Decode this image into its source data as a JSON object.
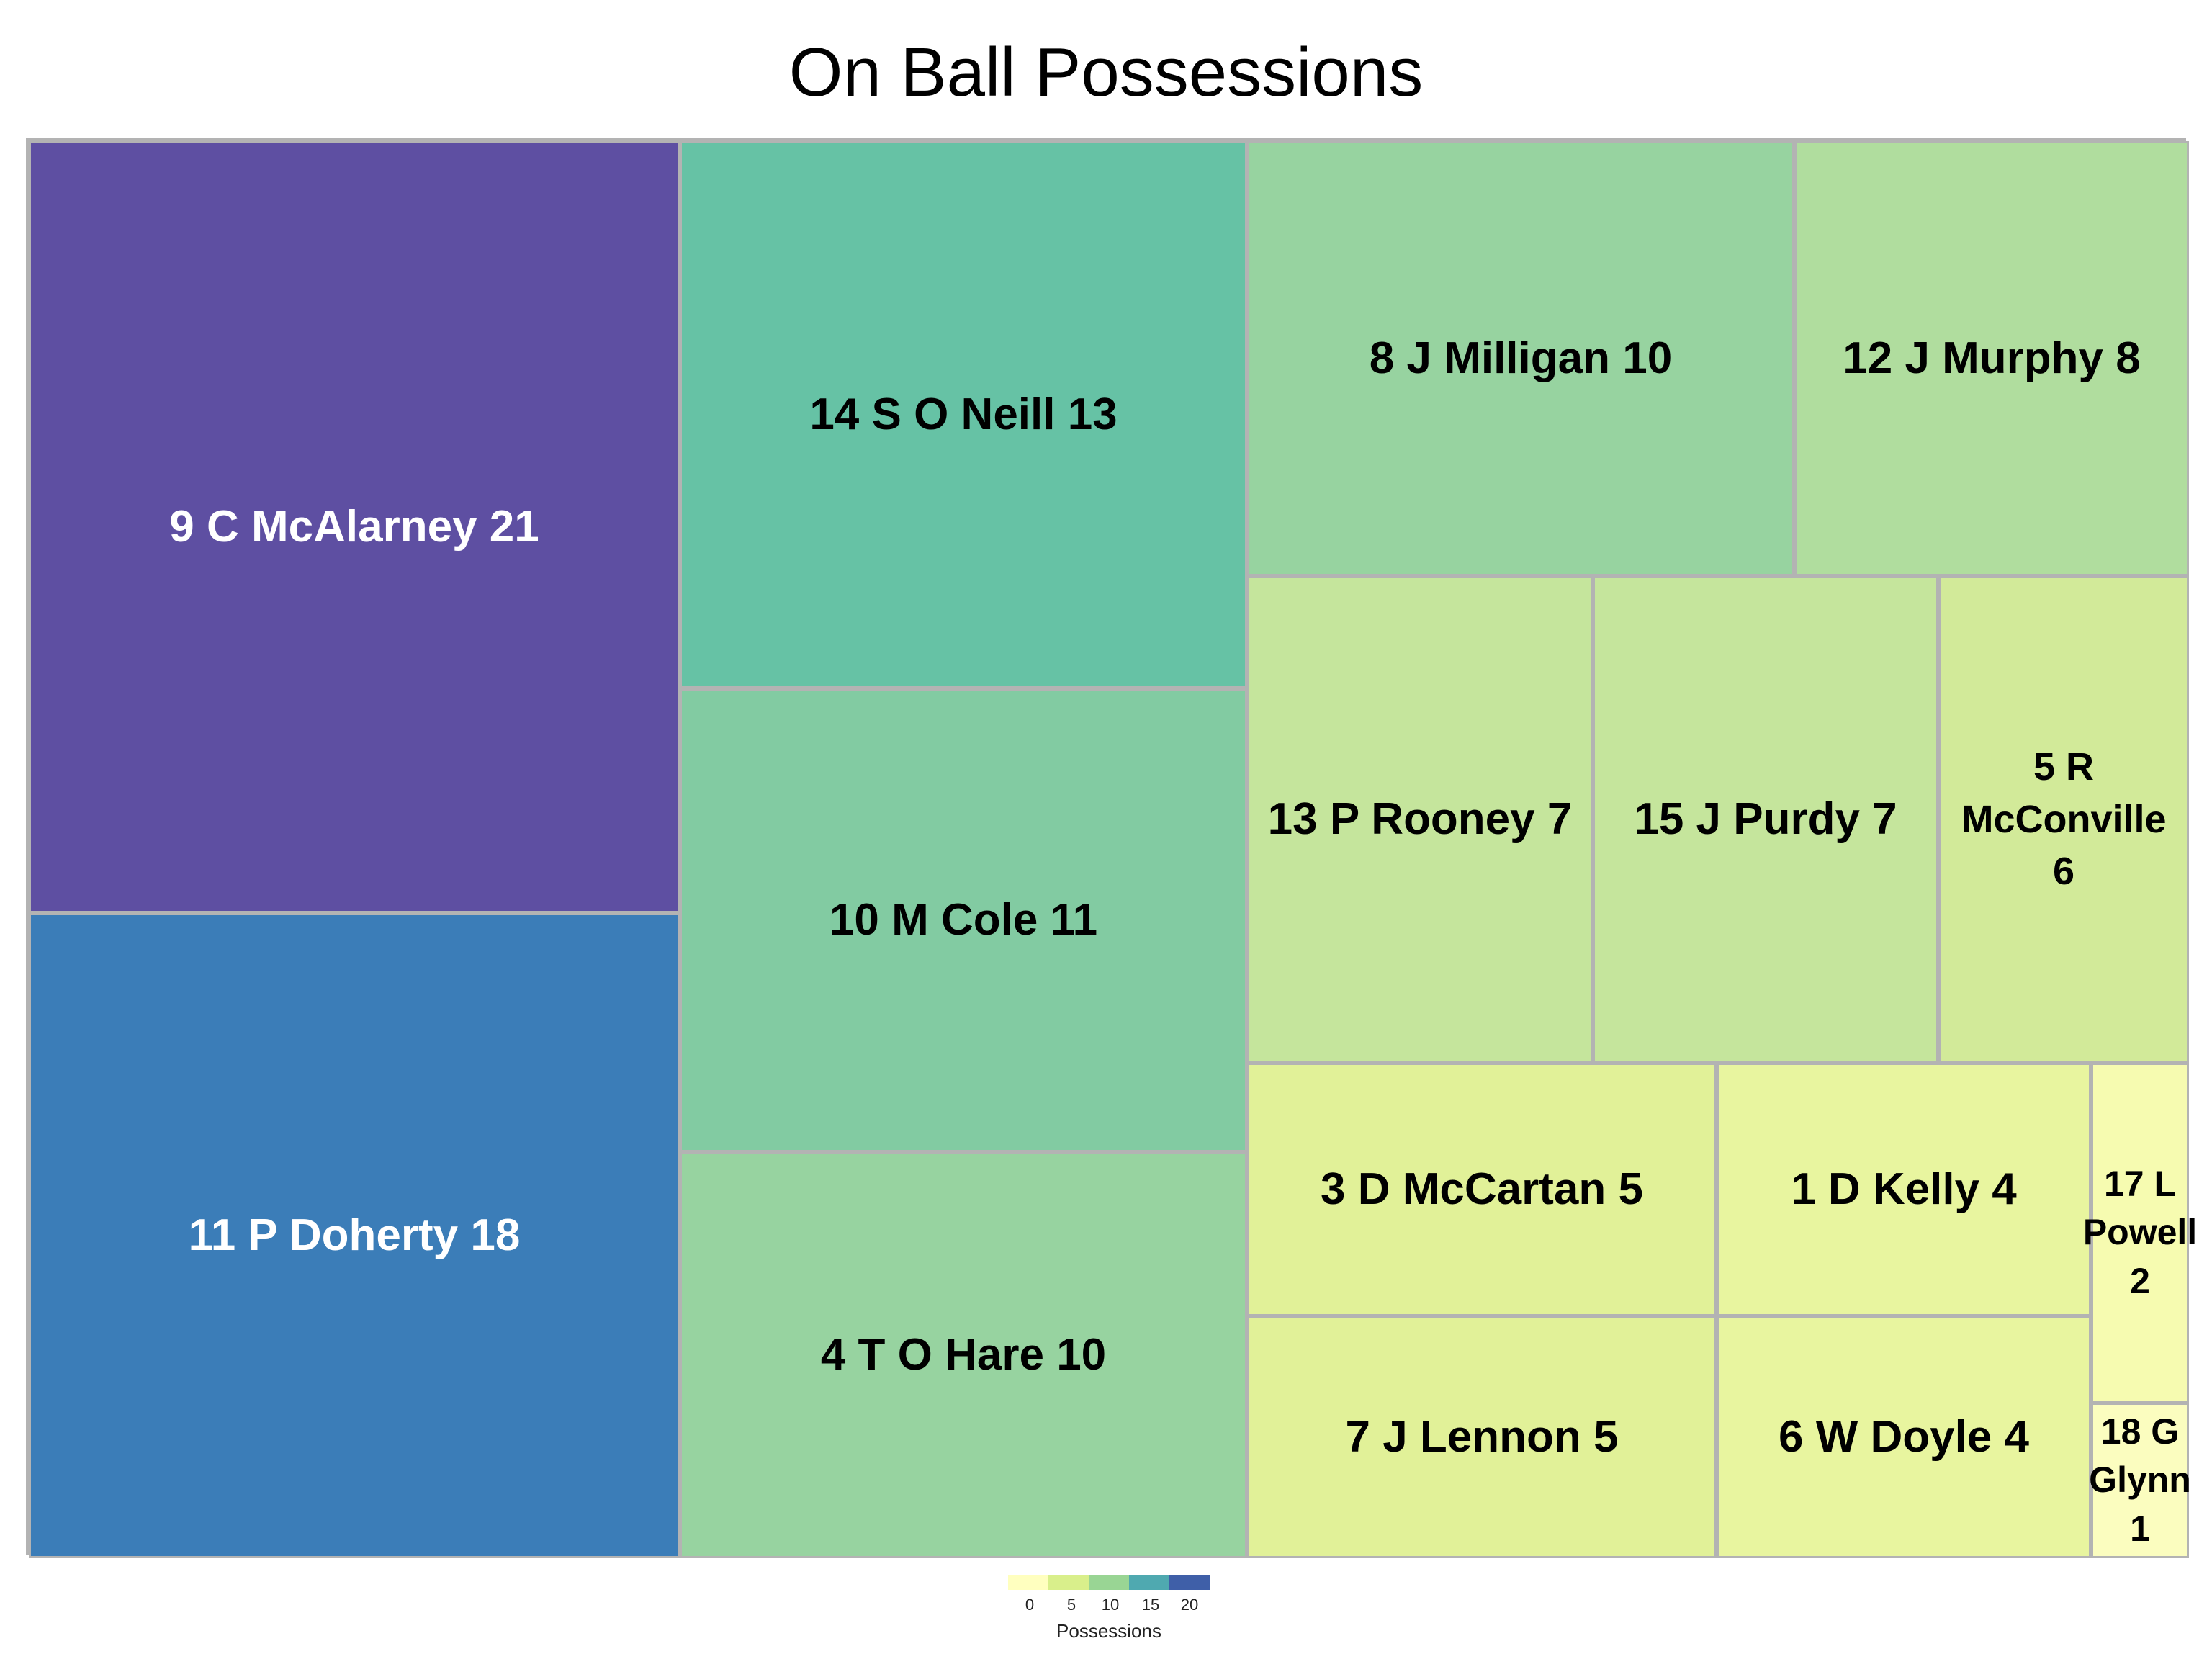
{
  "chart_data": {
    "type": "treemap",
    "title": "On Ball Possessions",
    "value_label": "Possessions",
    "color_scale": {
      "min": 0,
      "max": 21,
      "stops": [
        "#ffffcc",
        "#d9f0a3",
        "#addd8e",
        "#78c679",
        "#41ab5d",
        "#3690c0",
        "#5e4fa2"
      ],
      "ticks": [
        0,
        5,
        10,
        15,
        20
      ]
    },
    "tiles": [
      {
        "label": "9 C McAlarney 21",
        "value": 21,
        "color": "#5e4fa2"
      },
      {
        "label": "11 P Doherty 18",
        "value": 18,
        "color": "#3b7db8"
      },
      {
        "label": "14 S O Neill 13",
        "value": 13,
        "color": "#66c2a5"
      },
      {
        "label": "10 M Cole 11",
        "value": 11,
        "color": "#82cba2"
      },
      {
        "label": "4 T O Hare 10",
        "value": 10,
        "color": "#97d3a0"
      },
      {
        "label": "8 J Milligan 10",
        "value": 10,
        "color": "#97d3a0"
      },
      {
        "label": "12 J Murphy 8",
        "value": 8,
        "color": "#b0dd9e"
      },
      {
        "label": "13 P Rooney 7",
        "value": 7,
        "color": "#c5e59c"
      },
      {
        "label": "15 J Purdy 7",
        "value": 7,
        "color": "#c5e59c"
      },
      {
        "label": "5 R McConville 6",
        "value": 6,
        "color": "#d2ea99"
      },
      {
        "label": "3 D McCartan 5",
        "value": 5,
        "color": "#e1f198"
      },
      {
        "label": "7 J Lennon 5",
        "value": 5,
        "color": "#e1f198"
      },
      {
        "label": "1 D Kelly 4",
        "value": 4,
        "color": "#e8f59f"
      },
      {
        "label": "6 W Doyle 4",
        "value": 4,
        "color": "#e8f59f"
      },
      {
        "label": "17 L Powell 2",
        "value": 2,
        "color": "#f6fbb0"
      },
      {
        "label": "18 G Glynn 1",
        "value": 1,
        "color": "#fbfdbf"
      }
    ],
    "legend_position": "bottom"
  }
}
